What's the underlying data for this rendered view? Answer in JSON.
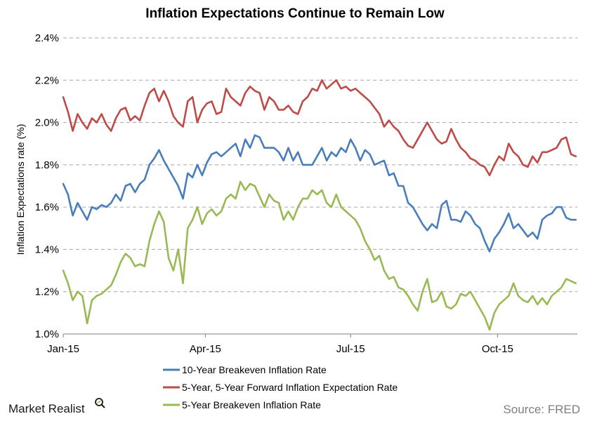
{
  "chart_data": {
    "type": "line",
    "title": "Inflation Expectations Continue to Remain Low",
    "ylabel": "Inflation Expectations rate (%)",
    "xlabel": "",
    "ylim": [
      1.0,
      2.4
    ],
    "xlim": [
      0,
      322
    ],
    "yticks": [
      {
        "value": 1.0,
        "label": "1.0%"
      },
      {
        "value": 1.2,
        "label": "1.2%"
      },
      {
        "value": 1.4,
        "label": "1.4%"
      },
      {
        "value": 1.6,
        "label": "1.6%"
      },
      {
        "value": 1.8,
        "label": "1.8%"
      },
      {
        "value": 2.0,
        "label": "2.0%"
      },
      {
        "value": 2.2,
        "label": "2.2%"
      },
      {
        "value": 2.4,
        "label": "2.4%"
      }
    ],
    "xticks": [
      {
        "value": 0,
        "label": "Jan-15"
      },
      {
        "value": 89,
        "label": "Apr-15"
      },
      {
        "value": 180,
        "label": "Jul-15"
      },
      {
        "value": 272,
        "label": "Oct-15"
      }
    ],
    "grid": "horizontal dashed",
    "legend_position": "bottom",
    "series": [
      {
        "name": "10-Year Breakeven Inflation Rate",
        "color": "#4a7ebb",
        "x": [
          0,
          3,
          6,
          9,
          12,
          15,
          18,
          21,
          24,
          27,
          30,
          33,
          36,
          39,
          42,
          45,
          48,
          51,
          54,
          57,
          60,
          63,
          66,
          69,
          72,
          75,
          78,
          81,
          84,
          87,
          90,
          93,
          96,
          99,
          102,
          105,
          108,
          111,
          114,
          117,
          120,
          123,
          126,
          129,
          132,
          135,
          138,
          141,
          144,
          147,
          150,
          153,
          156,
          159,
          162,
          165,
          168,
          171,
          174,
          177,
          180,
          183,
          186,
          189,
          192,
          195,
          198,
          201,
          204,
          207,
          210,
          213,
          216,
          219,
          222,
          225,
          228,
          231,
          234,
          237,
          240,
          243,
          246,
          249,
          252,
          255,
          258,
          261,
          264,
          267,
          270,
          273,
          276,
          279,
          282,
          285,
          288,
          291,
          294,
          297,
          300,
          303,
          306,
          309,
          312,
          315,
          318,
          321
        ],
        "values": [
          1.71,
          1.66,
          1.56,
          1.62,
          1.58,
          1.54,
          1.6,
          1.59,
          1.61,
          1.6,
          1.62,
          1.66,
          1.63,
          1.7,
          1.71,
          1.67,
          1.71,
          1.73,
          1.8,
          1.83,
          1.87,
          1.82,
          1.78,
          1.74,
          1.7,
          1.64,
          1.76,
          1.74,
          1.8,
          1.75,
          1.81,
          1.85,
          1.86,
          1.84,
          1.86,
          1.88,
          1.9,
          1.84,
          1.92,
          1.88,
          1.94,
          1.93,
          1.88,
          1.88,
          1.88,
          1.86,
          1.82,
          1.88,
          1.82,
          1.86,
          1.8,
          1.8,
          1.8,
          1.84,
          1.88,
          1.82,
          1.86,
          1.84,
          1.88,
          1.86,
          1.92,
          1.88,
          1.82,
          1.87,
          1.85,
          1.8,
          1.81,
          1.82,
          1.75,
          1.76,
          1.7,
          1.7,
          1.62,
          1.6,
          1.56,
          1.52,
          1.49,
          1.52,
          1.5,
          1.61,
          1.63,
          1.54,
          1.54,
          1.53,
          1.58,
          1.56,
          1.52,
          1.5,
          1.44,
          1.39,
          1.45,
          1.48,
          1.52,
          1.57,
          1.5,
          1.52,
          1.49,
          1.46,
          1.48,
          1.45,
          1.54,
          1.56,
          1.57,
          1.6,
          1.6,
          1.55,
          1.54,
          1.54
        ]
      },
      {
        "name": "5-Year, 5-Year Forward Inflation Expectation Rate",
        "color": "#be4b48",
        "x": [
          0,
          3,
          6,
          9,
          12,
          15,
          18,
          21,
          24,
          27,
          30,
          33,
          36,
          39,
          42,
          45,
          48,
          51,
          54,
          57,
          60,
          63,
          66,
          69,
          72,
          75,
          78,
          81,
          84,
          87,
          90,
          93,
          96,
          99,
          102,
          105,
          108,
          111,
          114,
          117,
          120,
          123,
          126,
          129,
          132,
          135,
          138,
          141,
          144,
          147,
          150,
          153,
          156,
          159,
          162,
          165,
          168,
          171,
          174,
          177,
          180,
          183,
          186,
          189,
          192,
          195,
          198,
          201,
          204,
          207,
          210,
          213,
          216,
          219,
          222,
          225,
          228,
          231,
          234,
          237,
          240,
          243,
          246,
          249,
          252,
          255,
          258,
          261,
          264,
          267,
          270,
          273,
          276,
          279,
          282,
          285,
          288,
          291,
          294,
          297,
          300,
          303,
          306,
          309,
          312,
          315,
          318,
          321
        ],
        "values": [
          2.12,
          2.05,
          1.96,
          2.04,
          2.0,
          1.97,
          2.02,
          2.0,
          2.04,
          1.99,
          1.96,
          2.02,
          2.06,
          2.07,
          2.01,
          2.03,
          2.01,
          2.08,
          2.14,
          2.16,
          2.1,
          2.15,
          2.1,
          2.03,
          2.0,
          1.98,
          2.1,
          2.12,
          2.0,
          2.06,
          2.09,
          2.1,
          2.04,
          2.05,
          2.16,
          2.12,
          2.1,
          2.08,
          2.14,
          2.17,
          2.15,
          2.14,
          2.06,
          2.12,
          2.1,
          2.06,
          2.06,
          2.08,
          2.05,
          2.04,
          2.1,
          2.12,
          2.16,
          2.15,
          2.2,
          2.16,
          2.18,
          2.2,
          2.16,
          2.17,
          2.15,
          2.16,
          2.14,
          2.12,
          2.1,
          2.07,
          2.04,
          1.98,
          2.01,
          1.98,
          1.96,
          1.92,
          1.89,
          1.88,
          1.92,
          1.96,
          2.0,
          1.96,
          1.92,
          1.9,
          1.91,
          1.97,
          1.92,
          1.88,
          1.86,
          1.83,
          1.82,
          1.8,
          1.79,
          1.75,
          1.8,
          1.84,
          1.82,
          1.9,
          1.86,
          1.84,
          1.8,
          1.79,
          1.84,
          1.81,
          1.86,
          1.86,
          1.87,
          1.88,
          1.92,
          1.93,
          1.85,
          1.84
        ]
      },
      {
        "name": "5-Year Breakeven Inflation Rate",
        "color": "#98b954",
        "x": [
          0,
          3,
          6,
          9,
          12,
          15,
          18,
          21,
          24,
          27,
          30,
          33,
          36,
          39,
          42,
          45,
          48,
          51,
          54,
          57,
          60,
          63,
          66,
          69,
          72,
          75,
          78,
          81,
          84,
          87,
          90,
          93,
          96,
          99,
          102,
          105,
          108,
          111,
          114,
          117,
          120,
          123,
          126,
          129,
          132,
          135,
          138,
          141,
          144,
          147,
          150,
          153,
          156,
          159,
          162,
          165,
          168,
          171,
          174,
          177,
          180,
          183,
          186,
          189,
          192,
          195,
          198,
          201,
          204,
          207,
          210,
          213,
          216,
          219,
          222,
          225,
          228,
          231,
          234,
          237,
          240,
          243,
          246,
          249,
          252,
          255,
          258,
          261,
          264,
          267,
          270,
          273,
          276,
          279,
          282,
          285,
          288,
          291,
          294,
          297,
          300,
          303,
          306,
          309,
          312,
          315,
          318,
          321
        ],
        "values": [
          1.3,
          1.24,
          1.16,
          1.2,
          1.18,
          1.05,
          1.16,
          1.18,
          1.19,
          1.21,
          1.23,
          1.28,
          1.34,
          1.38,
          1.36,
          1.32,
          1.33,
          1.32,
          1.44,
          1.52,
          1.58,
          1.53,
          1.36,
          1.3,
          1.4,
          1.24,
          1.5,
          1.54,
          1.6,
          1.52,
          1.57,
          1.59,
          1.56,
          1.58,
          1.64,
          1.66,
          1.64,
          1.72,
          1.68,
          1.71,
          1.7,
          1.65,
          1.6,
          1.66,
          1.63,
          1.62,
          1.54,
          1.58,
          1.54,
          1.6,
          1.64,
          1.64,
          1.68,
          1.66,
          1.68,
          1.62,
          1.6,
          1.66,
          1.6,
          1.58,
          1.56,
          1.54,
          1.5,
          1.44,
          1.4,
          1.35,
          1.37,
          1.3,
          1.26,
          1.27,
          1.22,
          1.21,
          1.18,
          1.14,
          1.11,
          1.2,
          1.26,
          1.15,
          1.16,
          1.2,
          1.13,
          1.12,
          1.14,
          1.19,
          1.18,
          1.2,
          1.16,
          1.12,
          1.08,
          1.02,
          1.1,
          1.14,
          1.16,
          1.18,
          1.24,
          1.18,
          1.16,
          1.15,
          1.18,
          1.14,
          1.17,
          1.14,
          1.18,
          1.2,
          1.22,
          1.26,
          1.25,
          1.24
        ]
      }
    ]
  },
  "branding": {
    "logo_text": "Market Realist",
    "source_text": "Source: FRED"
  }
}
